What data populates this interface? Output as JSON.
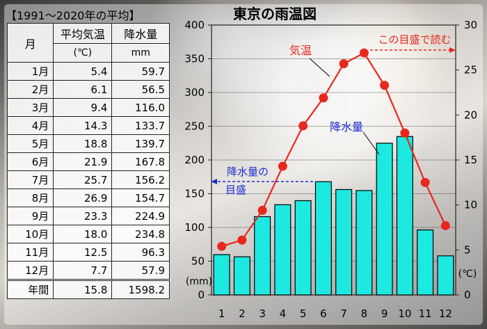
{
  "table": {
    "title": "【1991～2020年の平均】",
    "headers": {
      "month": "月",
      "temp": "平均気温",
      "temp_unit": "(℃)",
      "prec": "降水量",
      "prec_unit": "mm"
    },
    "rows": [
      {
        "month": "1月",
        "temp": "5.4",
        "prec": "59.7"
      },
      {
        "month": "2月",
        "temp": "6.1",
        "prec": "56.5"
      },
      {
        "month": "3月",
        "temp": "9.4",
        "prec": "116.0"
      },
      {
        "month": "4月",
        "temp": "14.3",
        "prec": "133.7"
      },
      {
        "month": "5月",
        "temp": "18.8",
        "prec": "139.7"
      },
      {
        "month": "6月",
        "temp": "21.9",
        "prec": "167.8"
      },
      {
        "month": "7月",
        "temp": "25.7",
        "prec": "156.2"
      },
      {
        "month": "8月",
        "temp": "26.9",
        "prec": "154.7"
      },
      {
        "month": "9月",
        "temp": "23.3",
        "prec": "224.9"
      },
      {
        "month": "10月",
        "temp": "18.0",
        "prec": "234.8"
      },
      {
        "month": "11月",
        "temp": "12.5",
        "prec": "96.3"
      },
      {
        "month": "12月",
        "temp": "7.7",
        "prec": "57.9"
      }
    ],
    "total": {
      "month": "年間",
      "temp": "15.8",
      "prec": "1598.2"
    }
  },
  "chart_data": {
    "type": "bar+line",
    "title": "東京の雨温図",
    "categories": [
      "1",
      "2",
      "3",
      "4",
      "5",
      "6",
      "7",
      "8",
      "9",
      "10",
      "11",
      "12"
    ],
    "series": [
      {
        "name": "降水量",
        "type": "bar",
        "axis": "left",
        "values": [
          59.7,
          56.5,
          116.0,
          133.7,
          139.7,
          167.8,
          156.2,
          154.7,
          224.9,
          234.8,
          96.3,
          57.9
        ]
      },
      {
        "name": "気温",
        "type": "line",
        "axis": "right",
        "values": [
          5.4,
          6.1,
          9.4,
          14.3,
          18.8,
          21.9,
          25.7,
          26.9,
          23.3,
          18.0,
          12.5,
          7.7
        ]
      }
    ],
    "y_left": {
      "range": [
        0,
        400
      ],
      "ticks": [
        0,
        50,
        100,
        150,
        200,
        250,
        300,
        350,
        400
      ],
      "unit": "(mm)"
    },
    "y_right": {
      "range": [
        0,
        30
      ],
      "ticks": [
        0,
        5,
        10,
        15,
        20,
        25,
        30
      ],
      "unit": "(℃)"
    },
    "annotations": {
      "right_axis_note": "この目盛で読む",
      "left_axis_note_1": "降水量の",
      "left_axis_note_2": "目盛"
    },
    "colors": {
      "bar": "#1de9e0",
      "bar_edge": "#000000",
      "line": "#e8271f",
      "annot_left": "#1c2bd6"
    }
  }
}
